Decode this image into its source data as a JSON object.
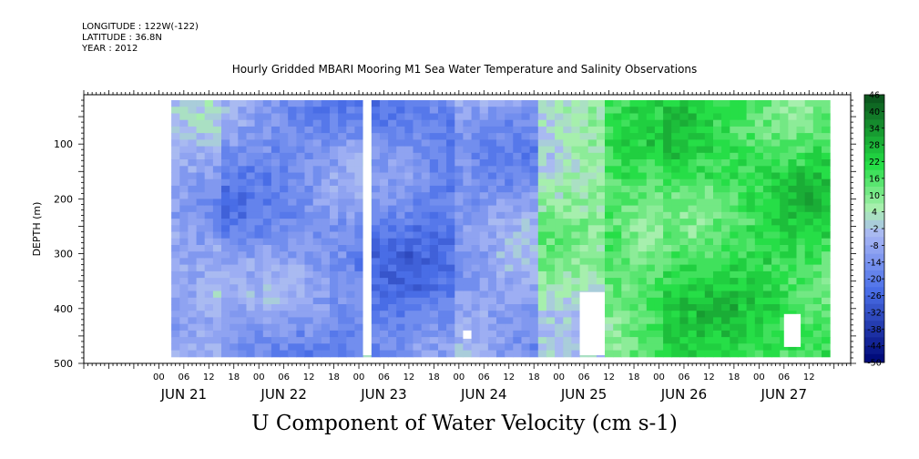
{
  "header": {
    "longitude": "LONGITUDE : 122W(-122)",
    "latitude": "LATITUDE : 36.8N",
    "year": "YEAR : 2012"
  },
  "title": "Hourly Gridded MBARI Mooring M1 Sea Water Temperature and Salinity Observations",
  "bottom_title": "U Component of Water Velocity (cm s-1)",
  "colors": {
    "strong_negative": "#000a7a",
    "negative": "#4a6fe8",
    "weak": "#a9b7f5",
    "light_positive": "#aaf0b0",
    "positive": "#22dd44",
    "strong_positive": "#0a4a1a"
  },
  "chart_data": {
    "type": "heatmap",
    "title": "Hourly Gridded MBARI Mooring M1 Sea Water Temperature and Salinity Observations",
    "xlabel": "",
    "ylabel": "DEPTH (m)",
    "colorbar_label": "U Component of Water Velocity (cm s-1)",
    "units": "cm s-1",
    "x_hour_ticks": [
      "00",
      "06",
      "12",
      "18",
      "00",
      "06",
      "12",
      "18",
      "00",
      "06",
      "12",
      "18",
      "00",
      "06",
      "12",
      "18",
      "00",
      "06",
      "12",
      "18",
      "00",
      "06",
      "12",
      "18",
      "00",
      "06",
      "12"
    ],
    "x_day_labels": [
      "JUN 21",
      "JUN 22",
      "JUN 23",
      "JUN 24",
      "JUN 25",
      "JUN 26",
      "JUN 27"
    ],
    "xlim_hours": [
      -18,
      166
    ],
    "y_ticks": [
      100,
      200,
      300,
      400,
      500
    ],
    "ylim": [
      500,
      10
    ],
    "y_reversed": true,
    "colorbar_ticks": [
      46,
      40,
      34,
      28,
      22,
      16,
      10,
      4,
      -2,
      -8,
      -14,
      -20,
      -26,
      -32,
      -38,
      -44,
      -50
    ],
    "colorbar_range": [
      -50,
      46
    ],
    "colorbar_step": 3,
    "data_range_hours": [
      3,
      160
    ],
    "data_range_depth": [
      20,
      485
    ],
    "gaps": [
      {
        "hours": [
          49,
          51
        ],
        "depth": [
          20,
          485
        ]
      },
      {
        "hours": [
          73,
          75
        ],
        "depth": [
          440,
          455
        ]
      },
      {
        "hours": [
          101,
          107
        ],
        "depth": [
          370,
          485
        ]
      },
      {
        "hours": [
          150,
          154
        ],
        "depth": [
          410,
          470
        ]
      }
    ],
    "mean_u_by_period": [
      {
        "hours": [
          3,
          14
        ],
        "u": -9
      },
      {
        "hours": [
          14,
          49
        ],
        "u": -15
      },
      {
        "hours": [
          51,
          70
        ],
        "u": -20
      },
      {
        "hours": [
          70,
          90
        ],
        "u": -12
      },
      {
        "hours": [
          90,
          106
        ],
        "u": 4
      },
      {
        "hours": [
          106,
          120
        ],
        "u": 14
      },
      {
        "hours": [
          120,
          160
        ],
        "u": 18
      }
    ]
  }
}
